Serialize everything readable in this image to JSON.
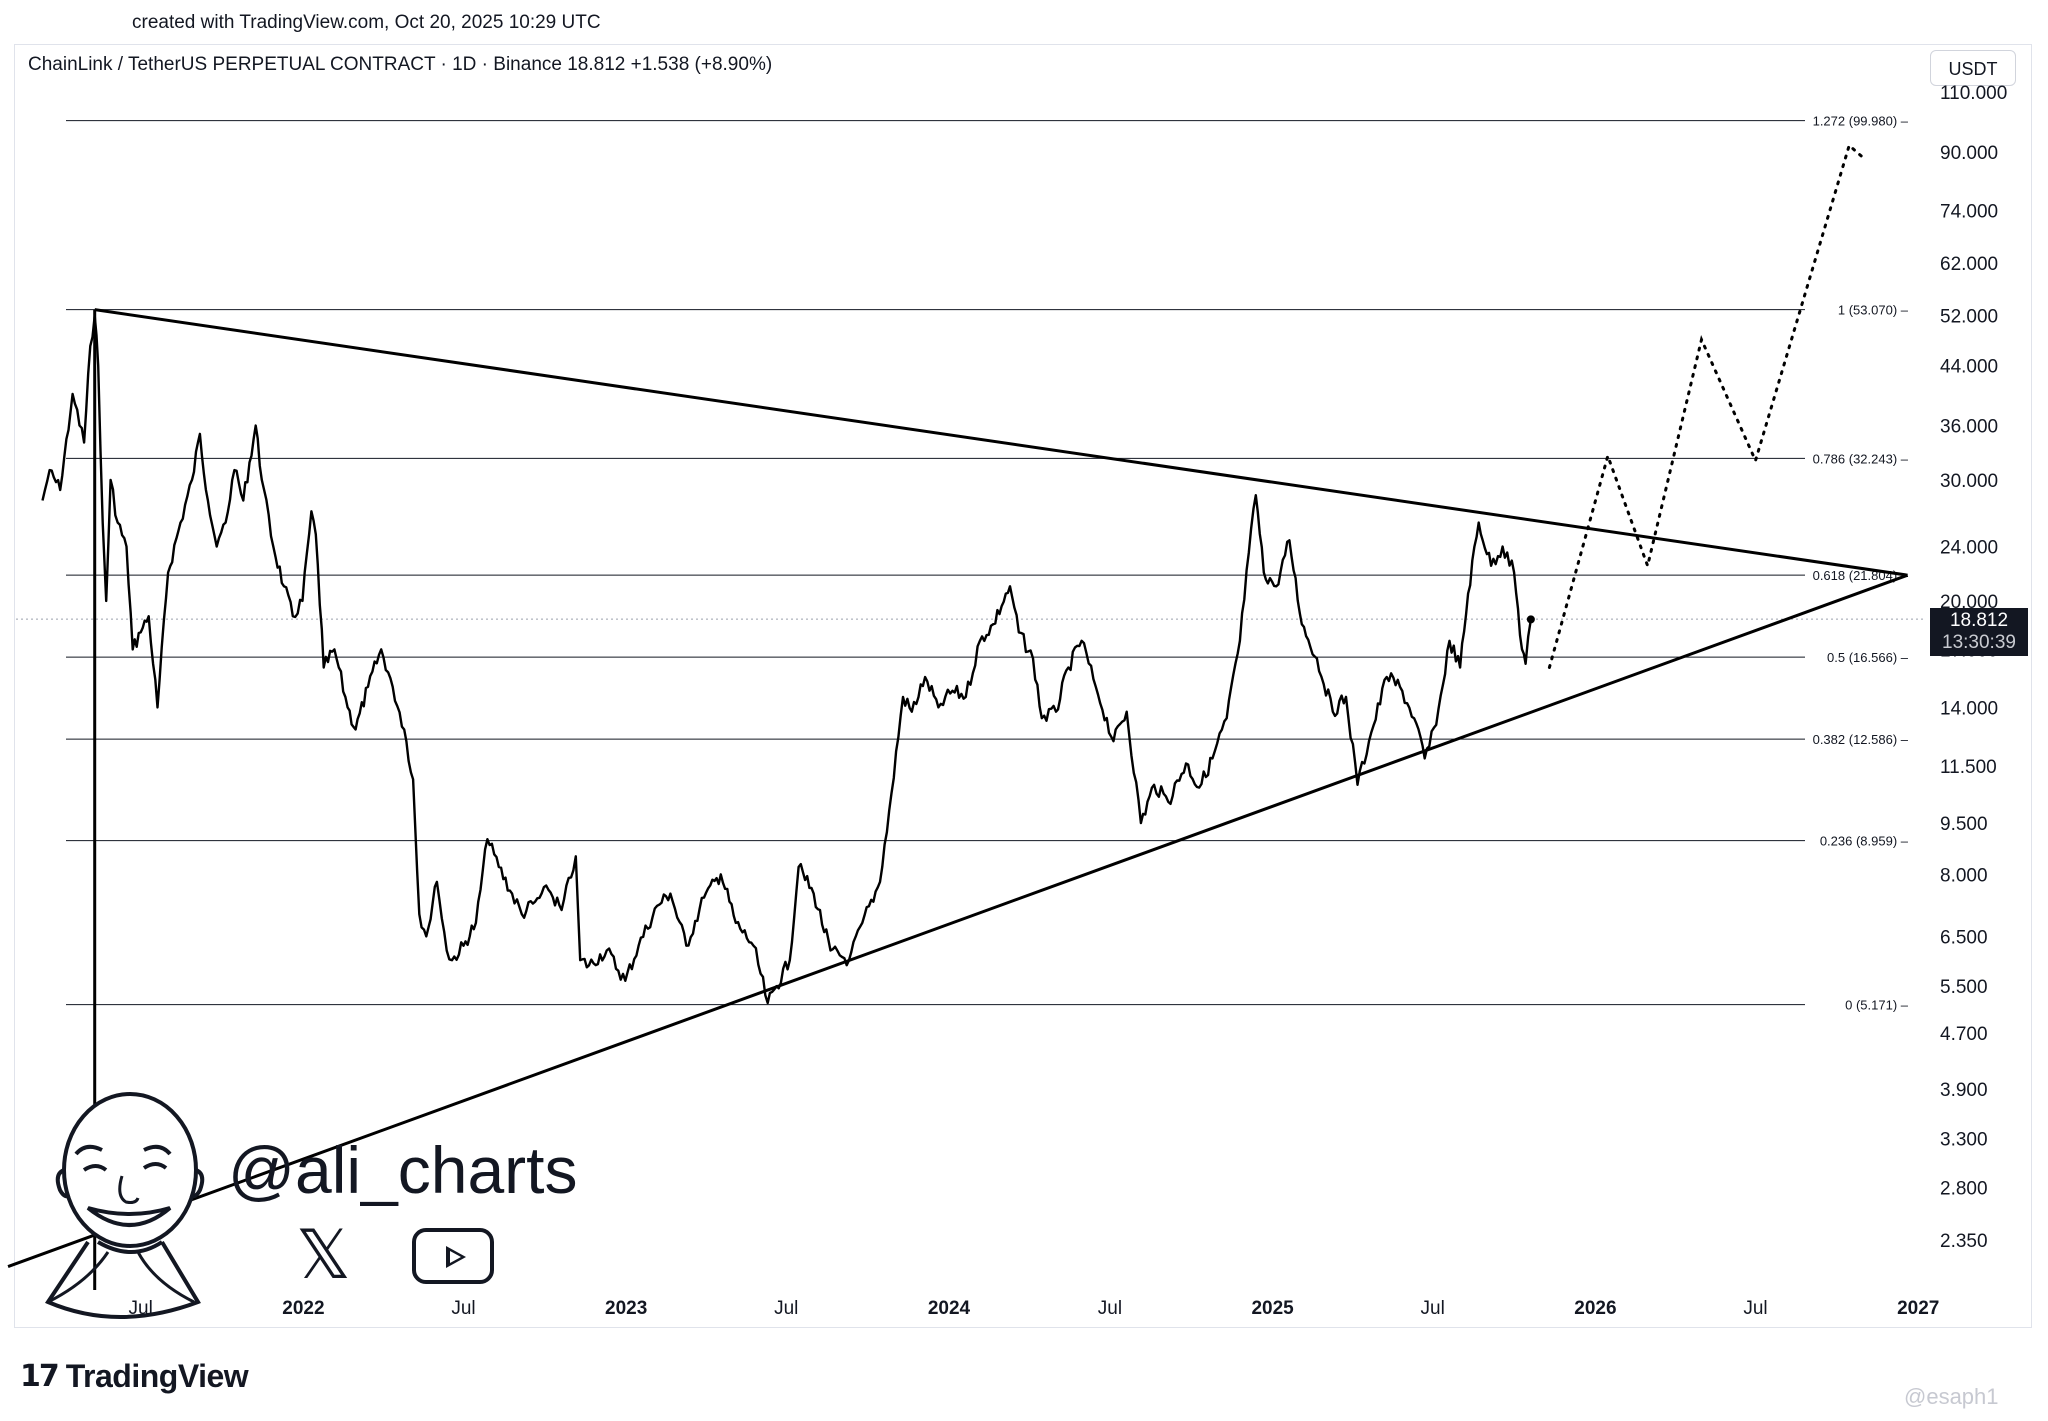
{
  "header": {
    "created": "created with TradingView.com, Oct 20, 2025 10:29 UTC",
    "symbol": "ChainLink / TetherUS PERPETUAL CONTRACT · 1D · Binance  18.812  +1.538 (+8.90%)",
    "currency": "USDT"
  },
  "price_tag": {
    "price": "18.812",
    "countdown": "13:30:39"
  },
  "branding": {
    "handle": "@ali_charts",
    "x_icon": "x-logo-icon",
    "youtube_icon": "youtube-play-icon",
    "avatar_icon": "cartoon-face-avatar",
    "footer_logo_mark": "17",
    "footer_logo_text": "TradingView",
    "watermark": "@esaph1"
  },
  "colors": {
    "line": "#000000",
    "text": "#131722",
    "grid": "#dcdcdc",
    "tag": "#131722"
  },
  "chart_data": {
    "type": "line",
    "scale": "log",
    "ylim": [
      2.0,
      115.0
    ],
    "y_ticks": [
      "110.000",
      "90.000",
      "74.000",
      "62.000",
      "52.000",
      "44.000",
      "36.000",
      "30.000",
      "24.000",
      "20.000",
      "17.000",
      "14.000",
      "11.500",
      "9.500",
      "8.000",
      "6.500",
      "5.500",
      "4.700",
      "3.900",
      "3.300",
      "2.800",
      "2.350"
    ],
    "y_tick_values": [
      110,
      90,
      74,
      62,
      52,
      44,
      36,
      30,
      24,
      20,
      17,
      14,
      11.5,
      9.5,
      8,
      6.5,
      5.5,
      4.7,
      3.9,
      3.3,
      2.8,
      2.35
    ],
    "x_labels": [
      {
        "label": "Jul",
        "date": "2021-07-01",
        "bold": false
      },
      {
        "label": "2022",
        "date": "2022-01-01",
        "bold": true
      },
      {
        "label": "Jul",
        "date": "2022-07-01",
        "bold": false
      },
      {
        "label": "2023",
        "date": "2023-01-01",
        "bold": true
      },
      {
        "label": "Jul",
        "date": "2023-07-01",
        "bold": false
      },
      {
        "label": "2024",
        "date": "2024-01-01",
        "bold": true
      },
      {
        "label": "Jul",
        "date": "2024-07-01",
        "bold": false
      },
      {
        "label": "2025",
        "date": "2025-01-01",
        "bold": true
      },
      {
        "label": "Jul",
        "date": "2025-07-01",
        "bold": false
      },
      {
        "label": "2026",
        "date": "2026-01-01",
        "bold": true
      },
      {
        "label": "Jul",
        "date": "2026-07-01",
        "bold": false
      },
      {
        "label": "2027",
        "date": "2027-01-01",
        "bold": true
      }
    ],
    "fib_levels": [
      {
        "label": "1.272 (99.980)",
        "value": 99.98
      },
      {
        "label": "1 (53.070)",
        "value": 53.07
      },
      {
        "label": "0.786 (32.243)",
        "value": 32.243
      },
      {
        "label": "0.618 (21.804)",
        "value": 21.804
      },
      {
        "label": "0.5 (16.566)",
        "value": 16.566
      },
      {
        "label": "0.382 (12.586)",
        "value": 12.586
      },
      {
        "label": "0.236 (8.959)",
        "value": 8.959
      },
      {
        "label": "0 (5.171)",
        "value": 5.171
      }
    ],
    "current_price": 18.812,
    "series": [
      {
        "points": [
          [
            "2021-03-12",
            28
          ],
          [
            "2021-03-20",
            31
          ],
          [
            "2021-04-01",
            29
          ],
          [
            "2021-04-15",
            40
          ],
          [
            "2021-04-28",
            34
          ],
          [
            "2021-05-05",
            47
          ],
          [
            "2021-05-10",
            52
          ],
          [
            "2021-05-14",
            44
          ],
          [
            "2021-05-19",
            26
          ],
          [
            "2021-05-23",
            20
          ],
          [
            "2021-05-28",
            30
          ],
          [
            "2021-06-05",
            26
          ],
          [
            "2021-06-15",
            24
          ],
          [
            "2021-06-22",
            17
          ],
          [
            "2021-07-01",
            18
          ],
          [
            "2021-07-10",
            19
          ],
          [
            "2021-07-20",
            14
          ],
          [
            "2021-08-01",
            22
          ],
          [
            "2021-08-15",
            26
          ],
          [
            "2021-08-28",
            30
          ],
          [
            "2021-09-06",
            35
          ],
          [
            "2021-09-15",
            28
          ],
          [
            "2021-09-25",
            24
          ],
          [
            "2021-10-05",
            26
          ],
          [
            "2021-10-15",
            31
          ],
          [
            "2021-10-25",
            28
          ],
          [
            "2021-11-08",
            36
          ],
          [
            "2021-11-15",
            30
          ],
          [
            "2021-11-28",
            24
          ],
          [
            "2021-12-10",
            21
          ],
          [
            "2021-12-20",
            19
          ],
          [
            "2021-12-31",
            20
          ],
          [
            "2022-01-10",
            27
          ],
          [
            "2022-01-15",
            25
          ],
          [
            "2022-01-24",
            16
          ],
          [
            "2022-02-05",
            17
          ],
          [
            "2022-02-20",
            14
          ],
          [
            "2022-03-01",
            13
          ],
          [
            "2022-03-15",
            15
          ],
          [
            "2022-03-30",
            17
          ],
          [
            "2022-04-12",
            15
          ],
          [
            "2022-04-25",
            13
          ],
          [
            "2022-05-05",
            11
          ],
          [
            "2022-05-12",
            7
          ],
          [
            "2022-05-20",
            6.5
          ],
          [
            "2022-06-01",
            7.8
          ],
          [
            "2022-06-12",
            6.2
          ],
          [
            "2022-06-18",
            6.0
          ],
          [
            "2022-07-01",
            6.3
          ],
          [
            "2022-07-15",
            6.8
          ],
          [
            "2022-07-28",
            9.0
          ],
          [
            "2022-08-10",
            8.2
          ],
          [
            "2022-08-25",
            7.5
          ],
          [
            "2022-09-05",
            7.0
          ],
          [
            "2022-09-20",
            7.3
          ],
          [
            "2022-10-05",
            7.6
          ],
          [
            "2022-10-20",
            7.1
          ],
          [
            "2022-11-05",
            8.5
          ],
          [
            "2022-11-10",
            6.0
          ],
          [
            "2022-11-20",
            5.9
          ],
          [
            "2022-12-10",
            6.2
          ],
          [
            "2022-12-31",
            5.6
          ],
          [
            "2023-01-15",
            6.3
          ],
          [
            "2023-02-05",
            7.2
          ],
          [
            "2023-02-20",
            7.5
          ],
          [
            "2023-03-10",
            6.3
          ],
          [
            "2023-03-30",
            7.4
          ],
          [
            "2023-04-18",
            8.0
          ],
          [
            "2023-05-05",
            6.8
          ],
          [
            "2023-05-25",
            6.3
          ],
          [
            "2023-06-10",
            5.2
          ],
          [
            "2023-06-20",
            5.5
          ],
          [
            "2023-07-05",
            6.0
          ],
          [
            "2023-07-15",
            8.2
          ],
          [
            "2023-08-01",
            7.5
          ],
          [
            "2023-08-20",
            6.2
          ],
          [
            "2023-09-10",
            6.0
          ],
          [
            "2023-09-25",
            6.8
          ],
          [
            "2023-10-15",
            7.8
          ],
          [
            "2023-10-28",
            10.5
          ],
          [
            "2023-11-10",
            14.5
          ],
          [
            "2023-11-20",
            13.8
          ],
          [
            "2023-12-05",
            15.5
          ],
          [
            "2023-12-20",
            14.0
          ],
          [
            "2024-01-05",
            14.8
          ],
          [
            "2024-01-20",
            14.5
          ],
          [
            "2024-02-05",
            17.5
          ],
          [
            "2024-02-20",
            18.5
          ],
          [
            "2024-03-10",
            21.0
          ],
          [
            "2024-03-20",
            18.0
          ],
          [
            "2024-04-05",
            16.5
          ],
          [
            "2024-04-15",
            13.5
          ],
          [
            "2024-05-01",
            13.8
          ],
          [
            "2024-05-15",
            16.0
          ],
          [
            "2024-05-30",
            17.5
          ],
          [
            "2024-06-15",
            15.0
          ],
          [
            "2024-07-05",
            12.5
          ],
          [
            "2024-07-20",
            13.8
          ],
          [
            "2024-08-05",
            9.5
          ],
          [
            "2024-08-20",
            10.8
          ],
          [
            "2024-09-05",
            10.2
          ],
          [
            "2024-09-25",
            11.6
          ],
          [
            "2024-10-10",
            10.7
          ],
          [
            "2024-10-25",
            11.8
          ],
          [
            "2024-11-10",
            13.5
          ],
          [
            "2024-11-25",
            17.5
          ],
          [
            "2024-12-05",
            23.5
          ],
          [
            "2024-12-13",
            28.5
          ],
          [
            "2024-12-22",
            22.0
          ],
          [
            "2025-01-05",
            21.0
          ],
          [
            "2025-01-20",
            24.5
          ],
          [
            "2025-02-03",
            18.5
          ],
          [
            "2025-02-20",
            16.5
          ],
          [
            "2025-03-10",
            13.8
          ],
          [
            "2025-03-25",
            14.5
          ],
          [
            "2025-04-07",
            10.8
          ],
          [
            "2025-04-20",
            12.5
          ],
          [
            "2025-05-10",
            15.5
          ],
          [
            "2025-05-25",
            15.0
          ],
          [
            "2025-06-10",
            13.5
          ],
          [
            "2025-06-22",
            11.8
          ],
          [
            "2025-07-05",
            13.2
          ],
          [
            "2025-07-20",
            17.5
          ],
          [
            "2025-08-01",
            16.0
          ],
          [
            "2025-08-10",
            20.5
          ],
          [
            "2025-08-22",
            26.0
          ],
          [
            "2025-09-05",
            22.5
          ],
          [
            "2025-09-18",
            24.0
          ],
          [
            "2025-10-01",
            22.0
          ],
          [
            "2025-10-10",
            17.0
          ],
          [
            "2025-10-14",
            16.2
          ],
          [
            "2025-10-20",
            18.8
          ]
        ]
      }
    ],
    "projection": [
      [
        "2025-11-10",
        16.0
      ],
      [
        "2026-01-15",
        32.5
      ],
      [
        "2026-03-01",
        22.5
      ],
      [
        "2026-05-01",
        48.0
      ],
      [
        "2026-07-01",
        32.0
      ],
      [
        "2026-10-15",
        92.0
      ],
      [
        "2026-11-01",
        88.0
      ]
    ],
    "trendlines": [
      {
        "name": "upper",
        "from": [
          "2021-05-10",
          53.07
        ],
        "to": [
          "2026-12-20",
          21.8
        ]
      },
      {
        "name": "lower",
        "from": [
          "2021-02-01",
          2.15
        ],
        "to": [
          "2026-12-20",
          21.8
        ]
      }
    ],
    "markers": [
      {
        "name": "vertical-line",
        "date": "2021-05-10"
      }
    ]
  }
}
